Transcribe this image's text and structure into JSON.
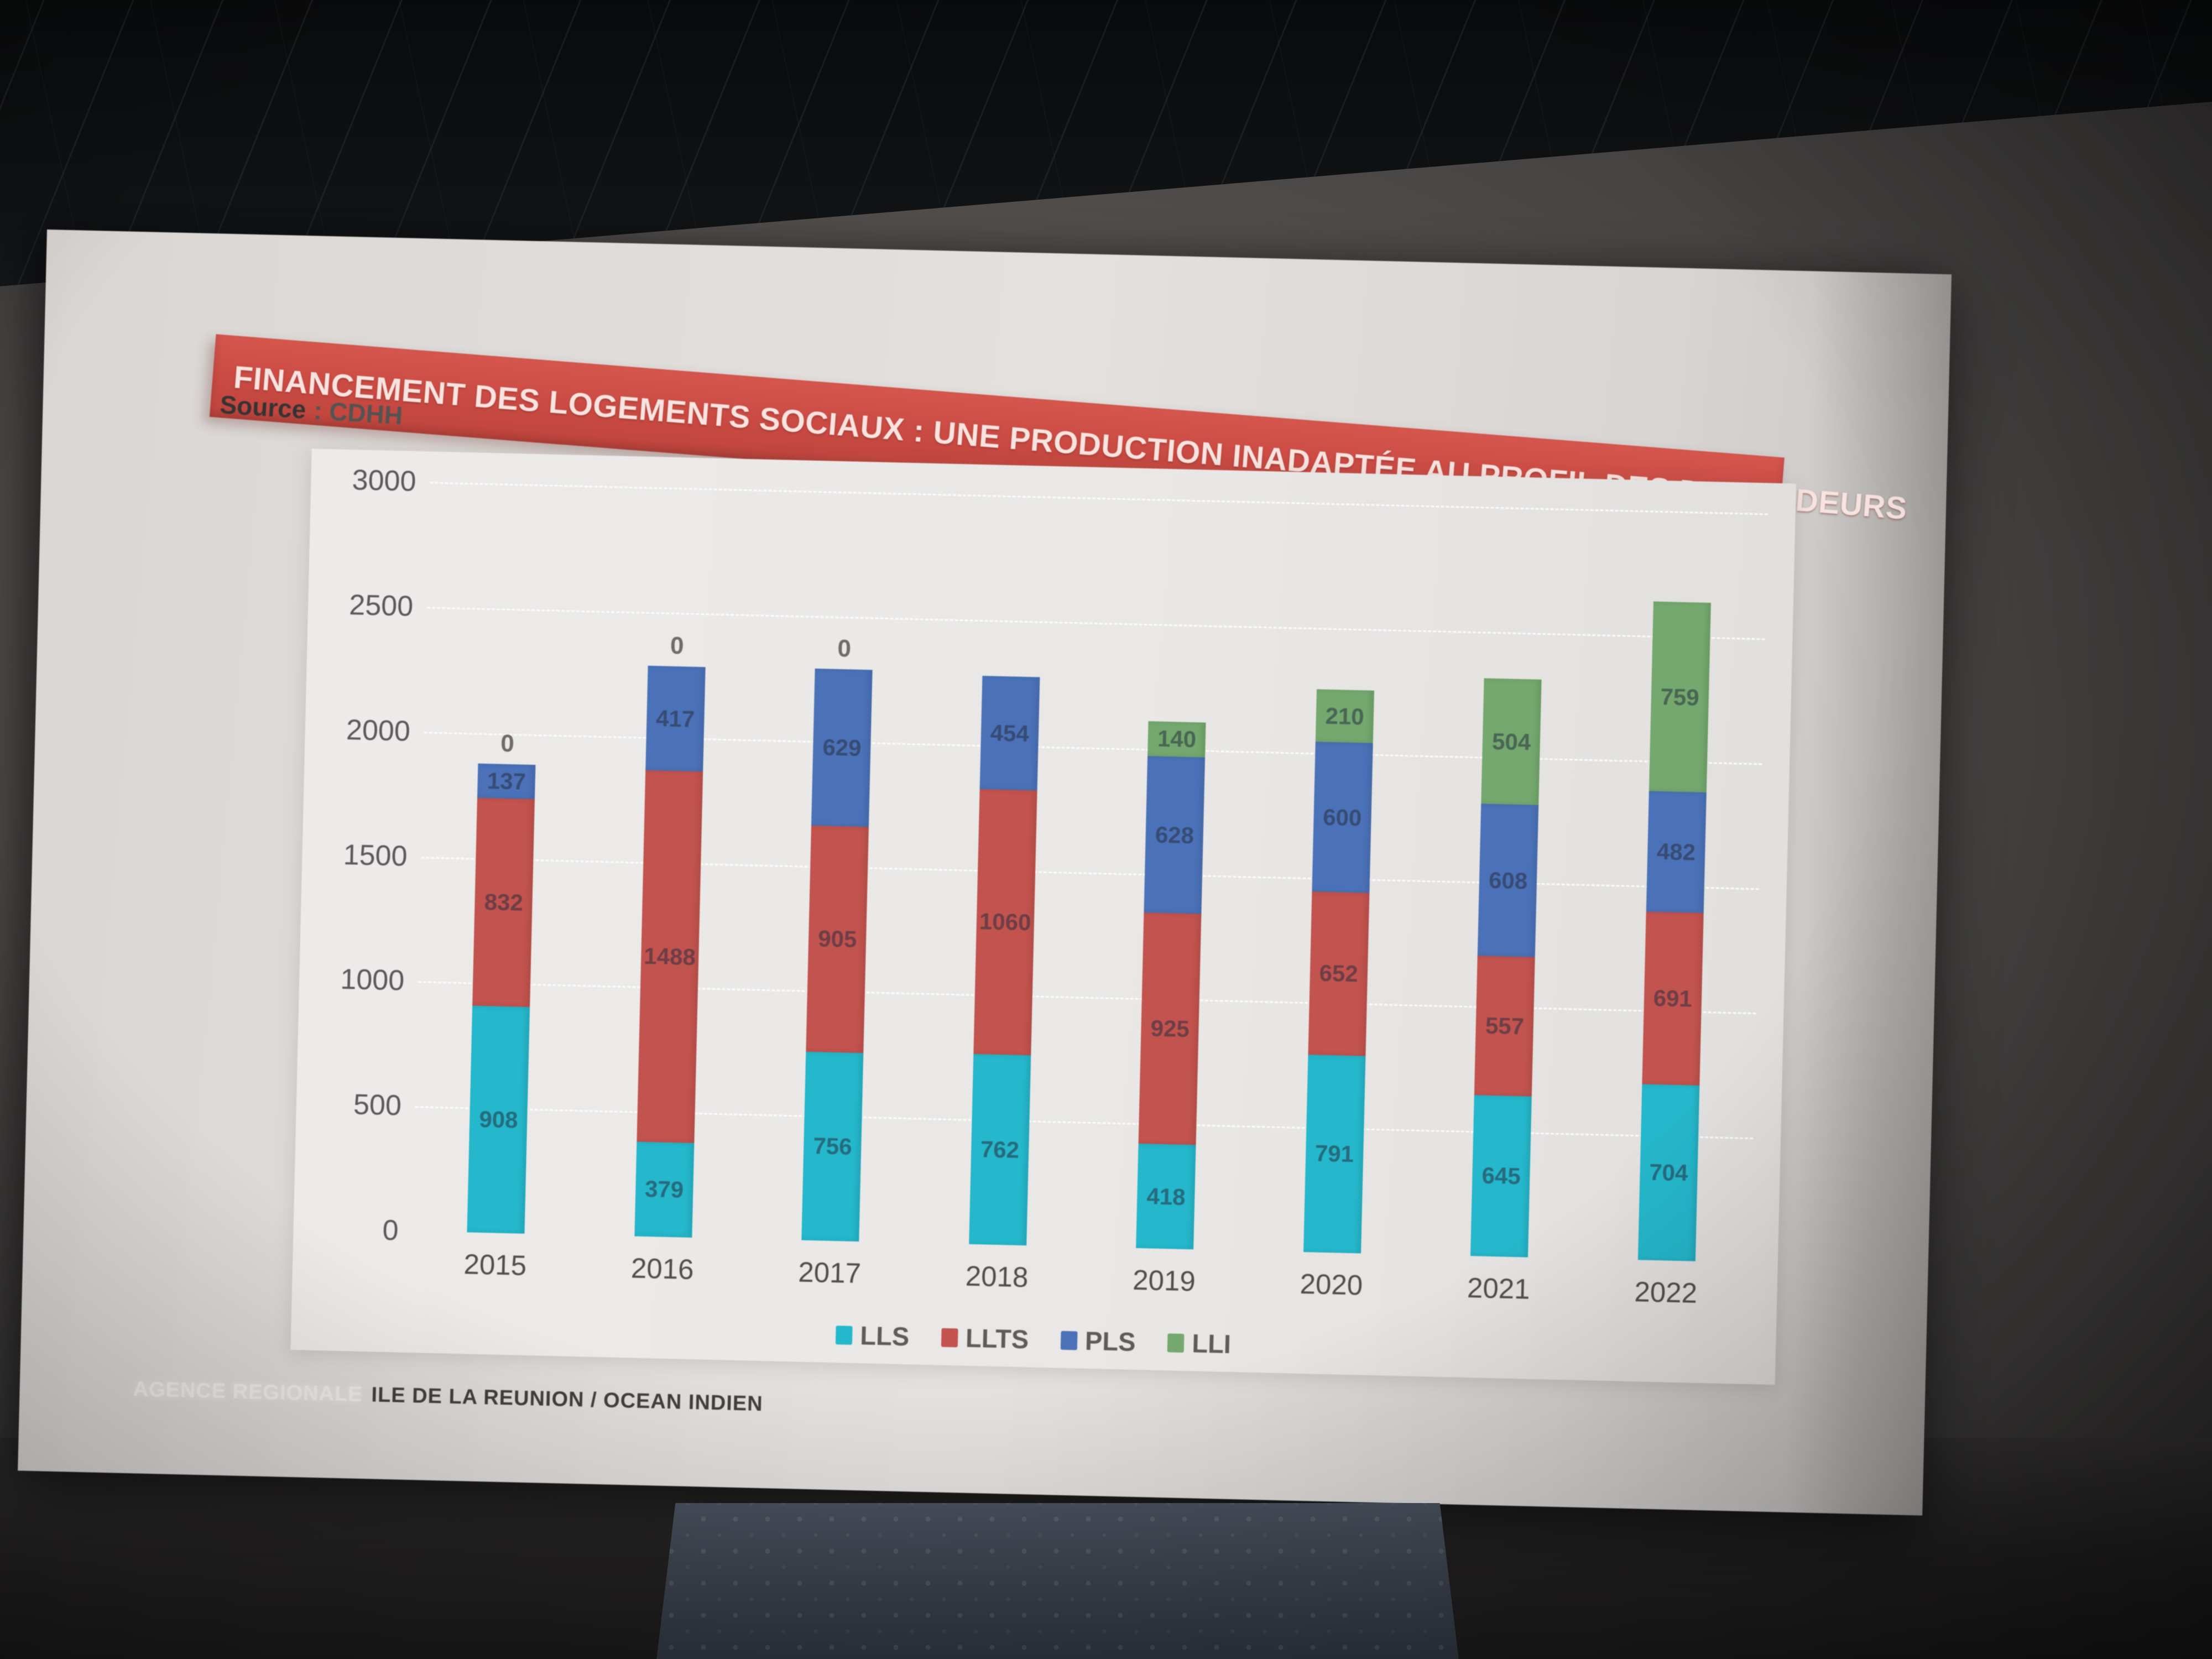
{
  "scene": {
    "source_label": "Source",
    "source_value": ": CDHH",
    "footer_brand": "AGENCE REGIONALE",
    "footer_text": "ILE DE LA REUNION / OCEAN INDIEN"
  },
  "banner": {
    "bg_color": "#c84a42",
    "text_color": "#f7e3df"
  },
  "chart_data": {
    "type": "bar",
    "stacked": true,
    "title": "FINANCEMENT DES LOGEMENTS SOCIAUX : UNE PRODUCTION INADAPTÉE AU PROFIL DES DEMANDEURS",
    "source": "CDHH",
    "categories": [
      "2015",
      "2016",
      "2017",
      "2018",
      "2019",
      "2020",
      "2021",
      "2022"
    ],
    "series": [
      {
        "name": "LLS",
        "color": "#25b7cb",
        "values": [
          908,
          379,
          756,
          762,
          418,
          791,
          645,
          704
        ]
      },
      {
        "name": "LLTS",
        "color": "#c3534e",
        "values": [
          832,
          1488,
          905,
          1060,
          925,
          652,
          557,
          691
        ]
      },
      {
        "name": "PLS",
        "color": "#4b72b8",
        "values": [
          137,
          417,
          629,
          454,
          628,
          600,
          608,
          482
        ]
      },
      {
        "name": "LLI",
        "color": "#74a86e",
        "values": [
          0,
          0,
          0,
          0,
          140,
          210,
          504,
          759
        ]
      }
    ],
    "zero_labels_above": [
      "2015",
      "2016",
      "2017"
    ],
    "xlabel": "",
    "ylabel": "",
    "ylim": [
      0,
      3000
    ],
    "yticks": [
      0,
      500,
      1000,
      1500,
      2000,
      2500,
      3000
    ],
    "grid": true,
    "legend_position": "bottom",
    "legend_entries": [
      "LLS",
      "LLTS",
      "PLS",
      "LLI"
    ]
  }
}
